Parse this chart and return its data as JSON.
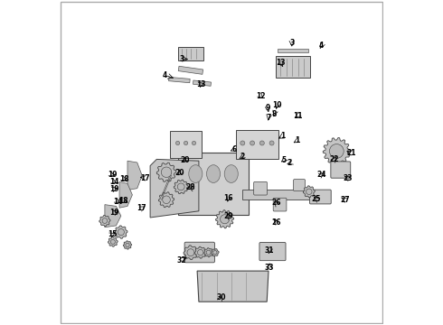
{
  "background_color": "#ffffff",
  "text_color": "#000000",
  "fig_width": 4.9,
  "fig_height": 3.6,
  "dpi": 100,
  "label_fontsize": 5.5,
  "font_family": "DejaVu Sans",
  "border_color": "#aaaaaa",
  "part_fill": "#d0d0d0",
  "part_edge": "#444444",
  "line_color": "#333333"
}
